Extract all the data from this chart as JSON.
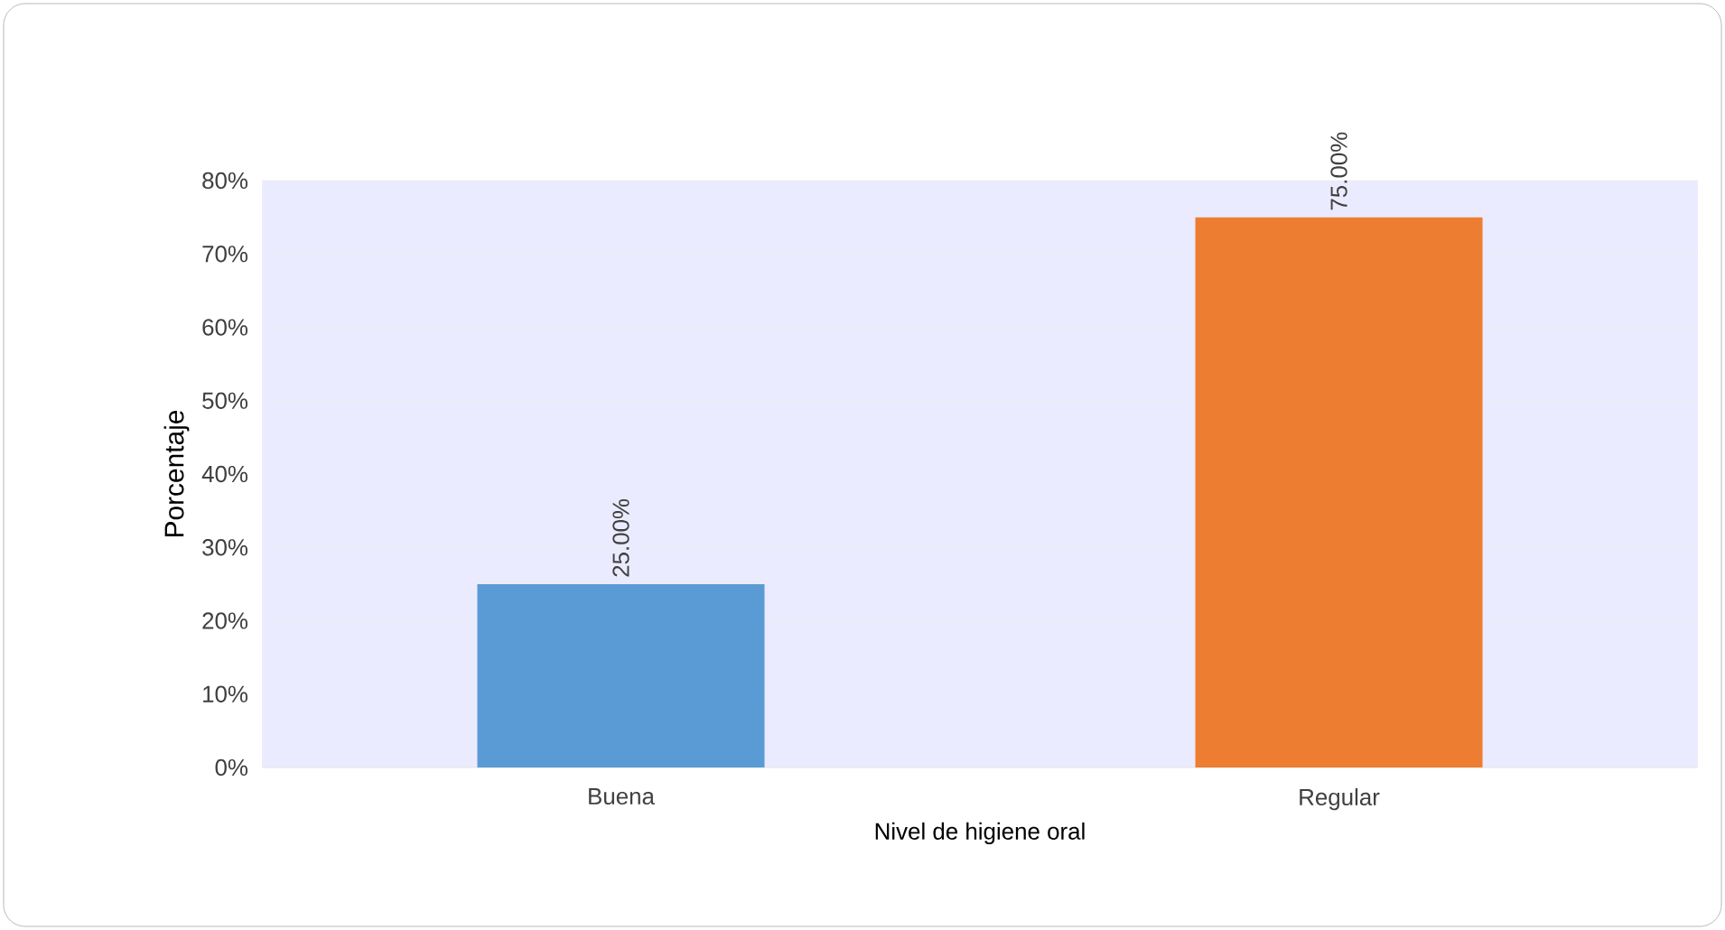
{
  "chart_data": {
    "type": "bar",
    "xlabel": "Nivel de higiene oral",
    "ylabel": "Porcentaje",
    "categories": [
      "Buena",
      "Regular"
    ],
    "values": [
      25,
      75
    ],
    "colors": [
      "#5b9bd5",
      "#ed7d31"
    ],
    "value_labels": [
      "25.00%",
      "75.00%"
    ],
    "ylim": [
      0,
      80
    ],
    "yticks": [
      {
        "value": 0,
        "label": "0%"
      },
      {
        "value": 10,
        "label": "10%"
      },
      {
        "value": 20,
        "label": "20%"
      },
      {
        "value": 30,
        "label": "30%"
      },
      {
        "value": 40,
        "label": "40%"
      },
      {
        "value": 50,
        "label": "50%"
      },
      {
        "value": 60,
        "label": "60%"
      },
      {
        "value": 70,
        "label": "70%"
      },
      {
        "value": 80,
        "label": "80%"
      }
    ],
    "grid": "y"
  }
}
